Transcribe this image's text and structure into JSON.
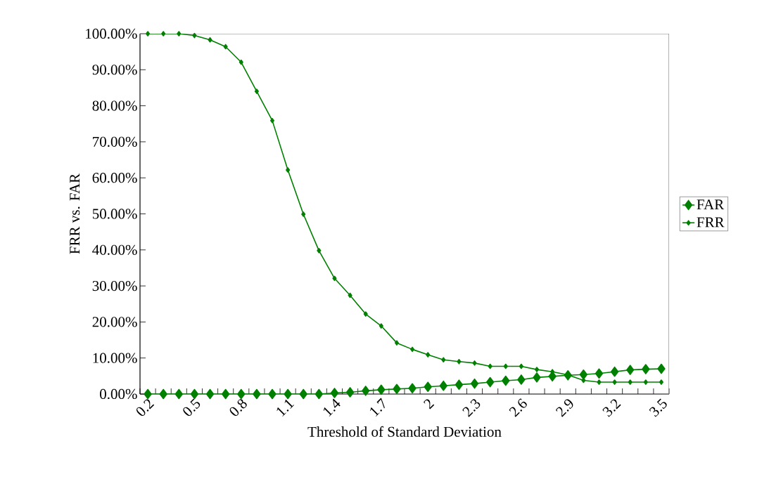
{
  "chart_data": {
    "type": "line",
    "xlabel": "Threshold of Standard Deviation",
    "ylabel": "FRR vs. FAR",
    "categories": [
      "0.2",
      null,
      null,
      "0.5",
      null,
      null,
      "0.8",
      null,
      null,
      "1.1",
      null,
      null,
      "1.4",
      null,
      null,
      "1.7",
      null,
      null,
      "2",
      null,
      null,
      "2.3",
      null,
      null,
      "2.6",
      null,
      null,
      "2.9",
      null,
      null,
      "3.2",
      null,
      null,
      "3.5"
    ],
    "series": [
      {
        "name": "FAR",
        "color": "#008000",
        "values": [
          0,
          0,
          0,
          0,
          0,
          0,
          0,
          0,
          0,
          0,
          0,
          0,
          0.3,
          0.5,
          0.9,
          1.2,
          1.4,
          1.6,
          2.0,
          2.3,
          2.6,
          2.9,
          3.3,
          3.7,
          4.0,
          4.6,
          4.9,
          5.2,
          5.4,
          5.7,
          6.2,
          6.7,
          6.9,
          7.0
        ]
      },
      {
        "name": "FRR",
        "color": "#008000",
        "values": [
          100,
          100,
          100,
          99.5,
          98.3,
          96.4,
          92.1,
          84.0,
          75.9,
          62.2,
          49.9,
          39.8,
          32.1,
          27.4,
          22.2,
          18.9,
          14.2,
          12.4,
          10.9,
          9.5,
          9.0,
          8.6,
          7.7,
          7.7,
          7.7,
          6.8,
          6.2,
          5.3,
          3.8,
          3.3,
          3.3,
          3.3,
          3.3,
          3.3
        ]
      }
    ],
    "ylim": [
      0,
      100
    ],
    "yticks": [
      {
        "value": 0,
        "label": "0.00%"
      },
      {
        "value": 10,
        "label": "10.00%"
      },
      {
        "value": 20,
        "label": "20.00%"
      },
      {
        "value": 30,
        "label": "30.00%"
      },
      {
        "value": 40,
        "label": "40.00%"
      },
      {
        "value": 50,
        "label": "50.00%"
      },
      {
        "value": 60,
        "label": "60.00%"
      },
      {
        "value": 70,
        "label": "70.00%"
      },
      {
        "value": 80,
        "label": "80.00%"
      },
      {
        "value": 90,
        "label": "90.00%"
      },
      {
        "value": 100,
        "label": "100.00%"
      }
    ],
    "legend": "right",
    "marker": "diamond",
    "line_style": "solid",
    "grid": false
  }
}
